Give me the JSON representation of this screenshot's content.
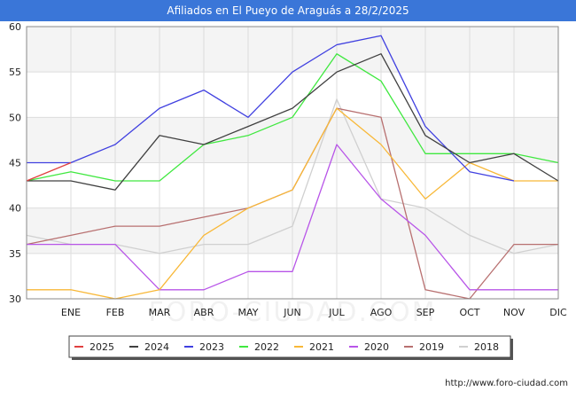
{
  "title": "Afiliados en El Pueyo de Araguás a 28/2/2025",
  "footer_url": "http://www.foro-ciudad.com",
  "watermark": "FORO-CIUDAD.COM",
  "chart_data": {
    "type": "line",
    "title": "Afiliados en El Pueyo de Araguás a 28/2/2025",
    "xlabel": "",
    "ylabel": "",
    "categories": [
      "",
      "ENE",
      "FEB",
      "MAR",
      "ABR",
      "MAY",
      "JUN",
      "JUL",
      "AGO",
      "SEP",
      "OCT",
      "NOV",
      "DIC"
    ],
    "ylim": [
      30,
      60
    ],
    "yticks": [
      30,
      35,
      40,
      45,
      50,
      55,
      60
    ],
    "grid": true,
    "legend_position": "bottom",
    "series": [
      {
        "name": "2018",
        "color": "#d0d0d0",
        "values": [
          37,
          36,
          36,
          35,
          36,
          36,
          38,
          52,
          41,
          40,
          37,
          35,
          36
        ]
      },
      {
        "name": "2019",
        "color": "#b87070",
        "values": [
          36,
          37,
          38,
          38,
          39,
          40,
          42,
          51,
          50,
          31,
          30,
          36,
          36
        ]
      },
      {
        "name": "2020",
        "color": "#b855e8",
        "values": [
          36,
          36,
          36,
          31,
          31,
          33,
          33,
          47,
          41,
          37,
          31,
          31,
          31
        ]
      },
      {
        "name": "2021",
        "color": "#f8b838",
        "values": [
          31,
          31,
          30,
          31,
          37,
          40,
          42,
          51,
          47,
          41,
          45,
          43,
          43
        ]
      },
      {
        "name": "2022",
        "color": "#40e840",
        "values": [
          43,
          44,
          43,
          43,
          47,
          48,
          50,
          57,
          54,
          46,
          46,
          46,
          45
        ]
      },
      {
        "name": "2023",
        "color": "#4040e0",
        "values": [
          45,
          45,
          47,
          51,
          53,
          50,
          55,
          58,
          59,
          49,
          44,
          43,
          null
        ]
      },
      {
        "name": "2024",
        "color": "#404040",
        "values": [
          43,
          43,
          42,
          48,
          47,
          49,
          51,
          55,
          57,
          48,
          45,
          46,
          43
        ]
      },
      {
        "name": "2025",
        "color": "#e04040",
        "values": [
          43,
          45,
          null,
          null,
          null,
          null,
          null,
          null,
          null,
          null,
          null,
          null,
          null
        ]
      }
    ],
    "legend_order": [
      "2025",
      "2024",
      "2023",
      "2022",
      "2021",
      "2020",
      "2019",
      "2018"
    ]
  }
}
